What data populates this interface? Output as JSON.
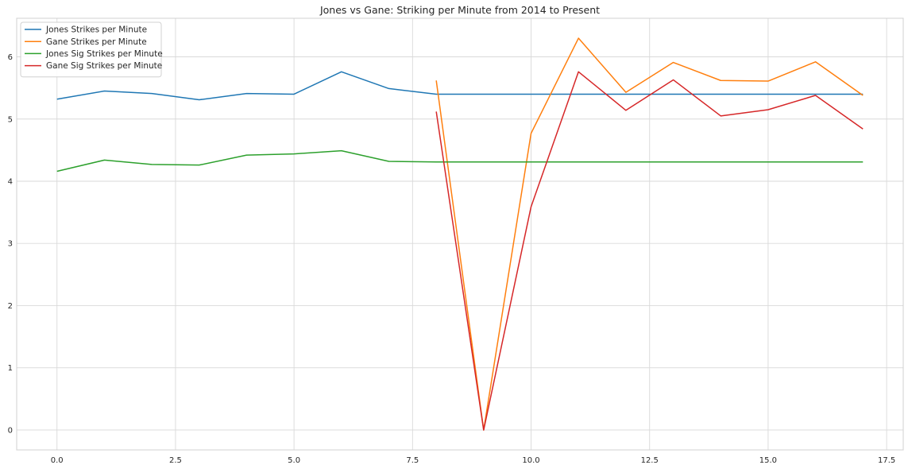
{
  "chart_data": {
    "type": "line",
    "title": "Jones vs Gane: Striking per Minute from 2014 to Present",
    "xlabel": "",
    "ylabel": "",
    "xlim": [
      -0.85,
      17.85
    ],
    "ylim": [
      -0.32,
      6.62
    ],
    "xticks": [
      0.0,
      2.5,
      5.0,
      7.5,
      10.0,
      12.5,
      15.0,
      17.5
    ],
    "xtick_labels": [
      "0.0",
      "2.5",
      "5.0",
      "7.5",
      "10.0",
      "12.5",
      "15.0",
      "17.5"
    ],
    "yticks": [
      0,
      1,
      2,
      3,
      4,
      5,
      6
    ],
    "ytick_labels": [
      "0",
      "1",
      "2",
      "3",
      "4",
      "5",
      "6"
    ],
    "grid": true,
    "legend_position": "top-left",
    "series": [
      {
        "name": "Jones Strikes per Minute",
        "color": "#1f77b4",
        "x": [
          0,
          1,
          2,
          3,
          4,
          5,
          6,
          7,
          8,
          9,
          10,
          11,
          12,
          13,
          14,
          15,
          16,
          17
        ],
        "values": [
          5.32,
          5.45,
          5.41,
          5.31,
          5.41,
          5.4,
          5.76,
          5.49,
          5.4,
          5.4,
          5.4,
          5.4,
          5.4,
          5.4,
          5.4,
          5.4,
          5.4,
          5.4
        ]
      },
      {
        "name": "Gane Strikes per Minute",
        "color": "#ff7f0e",
        "x": [
          8,
          9,
          10,
          11,
          12,
          13,
          14,
          15,
          16,
          17
        ],
        "values": [
          5.62,
          0.0,
          4.77,
          6.3,
          5.43,
          5.91,
          5.62,
          5.61,
          5.92,
          5.38
        ]
      },
      {
        "name": "Jones Sig Strikes per Minute",
        "color": "#2ca02c",
        "x": [
          0,
          1,
          2,
          3,
          4,
          5,
          6,
          7,
          8,
          9,
          10,
          11,
          12,
          13,
          14,
          15,
          16,
          17
        ],
        "values": [
          4.16,
          4.34,
          4.27,
          4.26,
          4.42,
          4.44,
          4.49,
          4.32,
          4.31,
          4.31,
          4.31,
          4.31,
          4.31,
          4.31,
          4.31,
          4.31,
          4.31,
          4.31
        ]
      },
      {
        "name": "Gane Sig Strikes per Minute",
        "color": "#d62728",
        "x": [
          8,
          9,
          10,
          11,
          12,
          13,
          14,
          15,
          16,
          17
        ],
        "values": [
          5.12,
          0.0,
          3.59,
          5.76,
          5.14,
          5.63,
          5.05,
          5.15,
          5.38,
          4.84
        ]
      }
    ]
  }
}
